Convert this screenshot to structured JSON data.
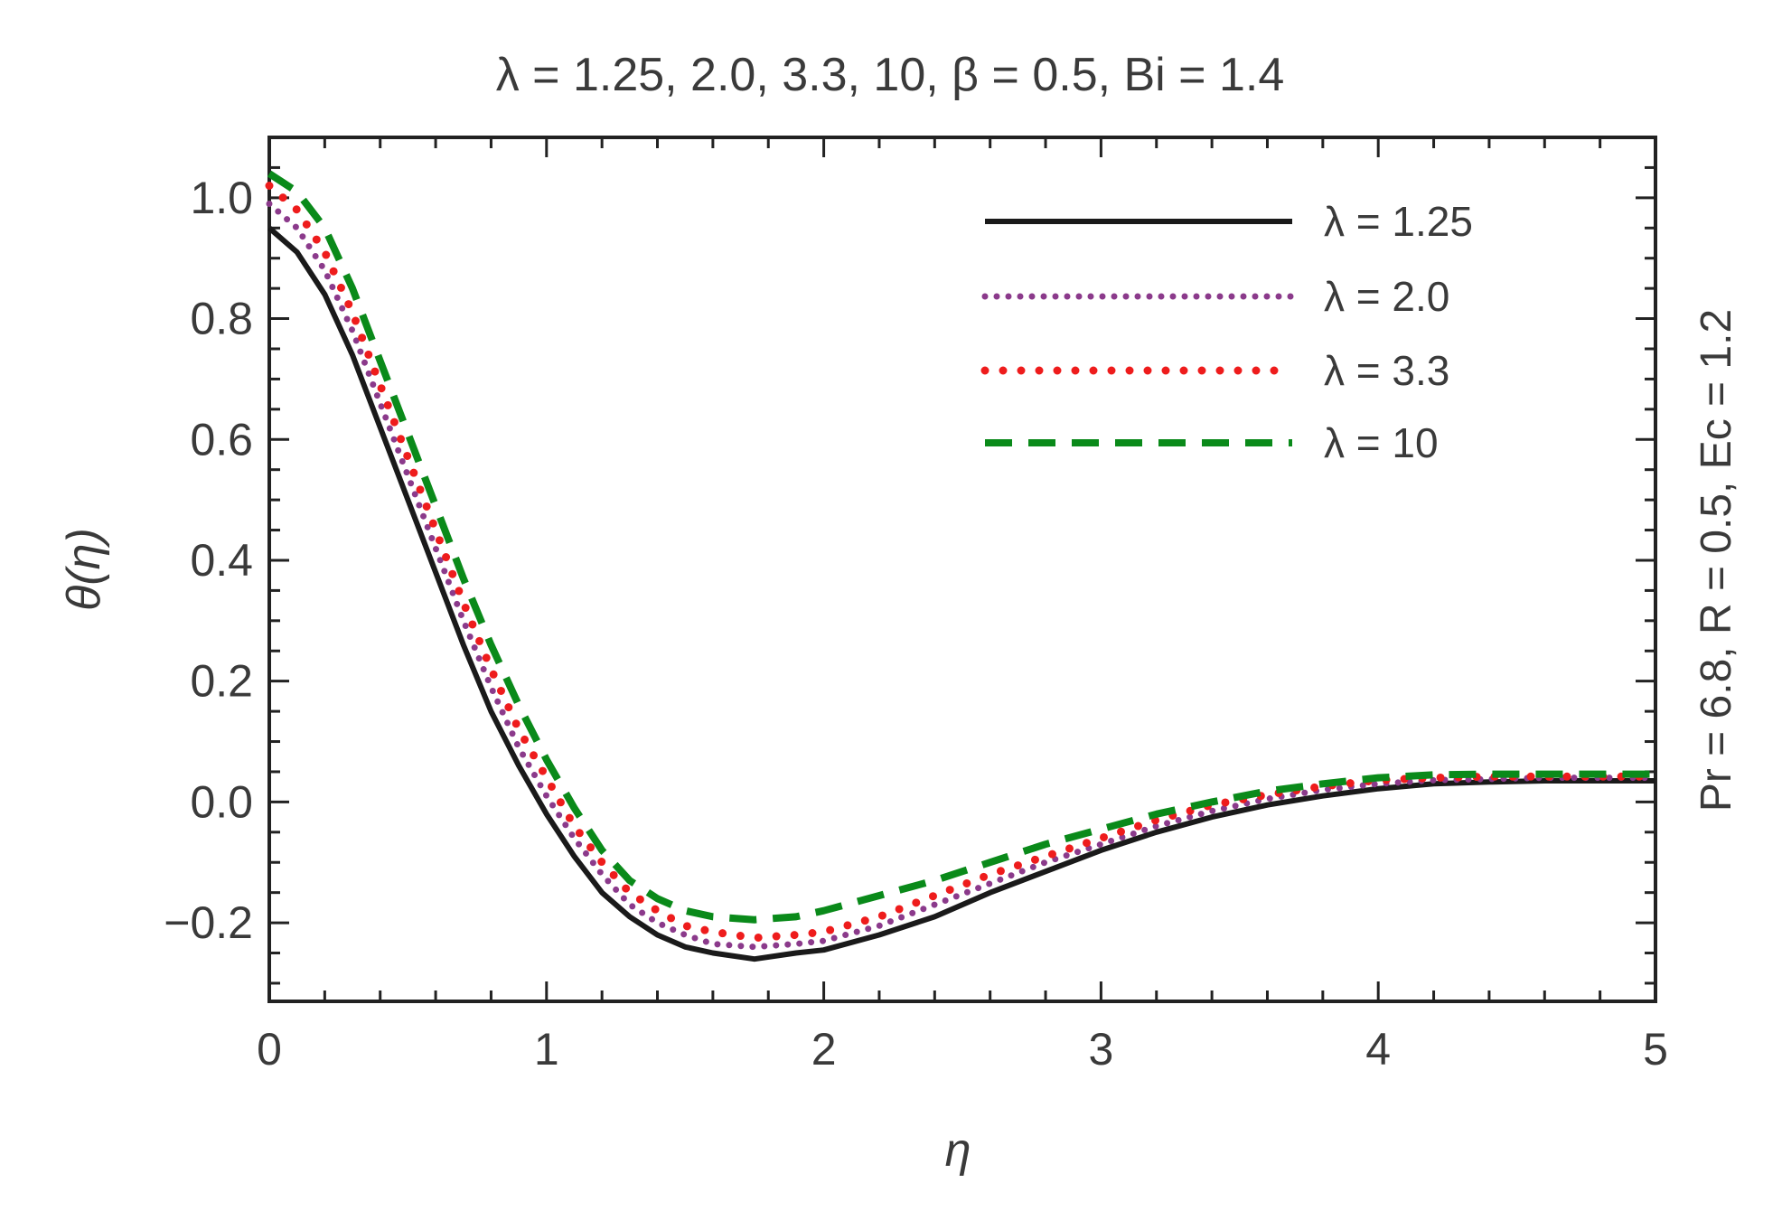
{
  "chart_data": {
    "type": "line",
    "title": "λ = 1.25, 2.0, 3.3, 10, β = 0.5, Bi = 1.4",
    "xlabel": "η",
    "ylabel": "θ(η)",
    "side_label": "Pr = 6.8, R = 0.5, Ec = 1.2",
    "xlim": [
      0,
      5
    ],
    "ylim": [
      -0.33,
      1.1
    ],
    "x_ticks": [
      "0",
      "1",
      "2",
      "3",
      "4",
      "5"
    ],
    "y_ticks": [
      "−0.2",
      "0.0",
      "0.2",
      "0.4",
      "0.6",
      "0.8",
      "1.0"
    ],
    "legend_position": "top-right",
    "grid": false,
    "x": [
      0,
      0.1,
      0.2,
      0.3,
      0.4,
      0.5,
      0.6,
      0.7,
      0.8,
      0.9,
      1.0,
      1.1,
      1.2,
      1.3,
      1.4,
      1.5,
      1.6,
      1.75,
      1.9,
      2.0,
      2.2,
      2.4,
      2.6,
      2.8,
      3.0,
      3.2,
      3.4,
      3.6,
      3.8,
      4.0,
      4.2,
      4.4,
      4.6,
      4.8,
      5.0
    ],
    "series": [
      {
        "name": "λ = 1.25",
        "color": "#1a1a1a",
        "style": "solid",
        "values": [
          0.95,
          0.91,
          0.84,
          0.74,
          0.62,
          0.5,
          0.38,
          0.26,
          0.15,
          0.06,
          -0.02,
          -0.09,
          -0.15,
          -0.19,
          -0.22,
          -0.24,
          -0.25,
          -0.26,
          -0.25,
          -0.245,
          -0.22,
          -0.19,
          -0.15,
          -0.115,
          -0.08,
          -0.05,
          -0.025,
          -0.005,
          0.01,
          0.022,
          0.03,
          0.033,
          0.035,
          0.035,
          0.035
        ]
      },
      {
        "name": "λ = 2.0",
        "color": "#8b3a8b",
        "style": "dotted",
        "values": [
          0.99,
          0.95,
          0.88,
          0.78,
          0.66,
          0.54,
          0.42,
          0.3,
          0.19,
          0.09,
          0.01,
          -0.06,
          -0.12,
          -0.17,
          -0.2,
          -0.22,
          -0.235,
          -0.24,
          -0.235,
          -0.23,
          -0.205,
          -0.17,
          -0.135,
          -0.1,
          -0.07,
          -0.04,
          -0.015,
          0.005,
          0.02,
          0.03,
          0.036,
          0.038,
          0.04,
          0.04,
          0.04
        ]
      },
      {
        "name": "λ = 3.3",
        "color": "#ee1c1c",
        "style": "dotted",
        "values": [
          1.02,
          0.98,
          0.91,
          0.81,
          0.69,
          0.57,
          0.45,
          0.33,
          0.22,
          0.12,
          0.04,
          -0.04,
          -0.1,
          -0.15,
          -0.18,
          -0.205,
          -0.215,
          -0.225,
          -0.22,
          -0.215,
          -0.19,
          -0.155,
          -0.12,
          -0.09,
          -0.06,
          -0.03,
          -0.005,
          0.012,
          0.026,
          0.036,
          0.04,
          0.042,
          0.042,
          0.042,
          0.042
        ]
      },
      {
        "name": "λ = 10",
        "color": "#0a8a1a",
        "style": "dashed",
        "values": [
          1.04,
          1.01,
          0.95,
          0.85,
          0.73,
          0.61,
          0.49,
          0.37,
          0.26,
          0.16,
          0.07,
          -0.01,
          -0.08,
          -0.13,
          -0.16,
          -0.18,
          -0.19,
          -0.195,
          -0.19,
          -0.18,
          -0.155,
          -0.13,
          -0.1,
          -0.07,
          -0.045,
          -0.02,
          0.0,
          0.018,
          0.03,
          0.04,
          0.045,
          0.046,
          0.046,
          0.046,
          0.046
        ]
      }
    ]
  }
}
